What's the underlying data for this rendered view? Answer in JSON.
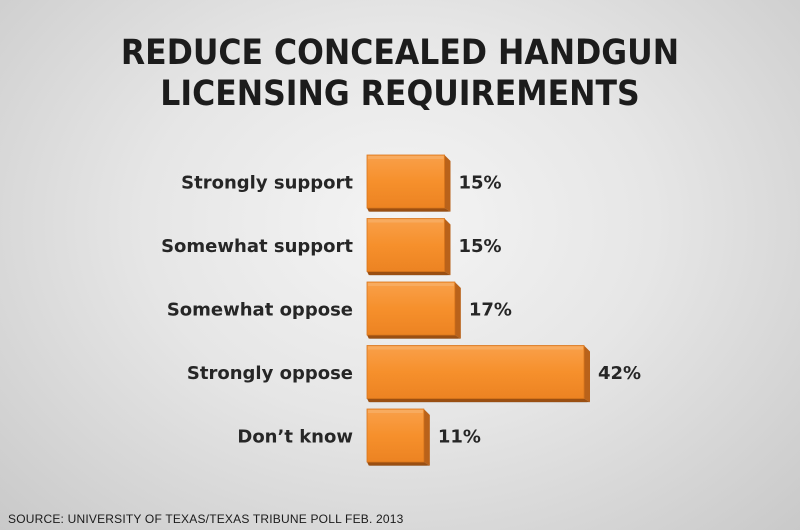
{
  "title_lines": [
    "REDUCE CONCEALED HANDGUN",
    "LICENSING REQUIREMENTS"
  ],
  "source": "SOURCE: UNIVERSITY OF TEXAS/TEXAS TRIBUNE POLL FEB. 2013",
  "colors": {
    "bar_front": "#f6902c",
    "bar_top": "#f8b06a",
    "bar_side": "#b9621a",
    "text": "#262626"
  },
  "chart_data": {
    "type": "bar",
    "orientation": "horizontal",
    "title": "REDUCE CONCEALED HANDGUN LICENSING REQUIREMENTS",
    "categories": [
      "Strongly support",
      "Somewhat support",
      "Somewhat oppose",
      "Strongly oppose",
      "Don’t know"
    ],
    "values": [
      15,
      15,
      17,
      42,
      11
    ],
    "value_labels": [
      "15%",
      "15%",
      "17%",
      "42%",
      "11%"
    ],
    "unit": "%",
    "xlim": [
      0,
      42
    ]
  }
}
